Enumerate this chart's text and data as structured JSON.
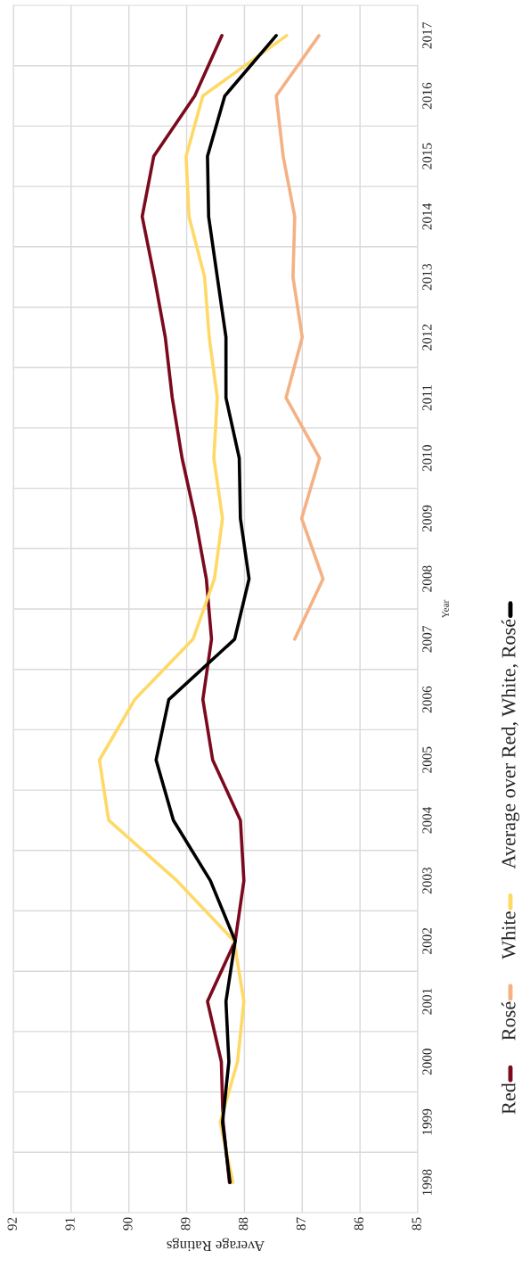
{
  "chart_data": {
    "type": "line",
    "orientation": "horizontal",
    "xlabel": "Average Ratings",
    "ylabel": "Year",
    "categories": [
      "2017",
      "2016",
      "2015",
      "2014",
      "2013",
      "2012",
      "2011",
      "2010",
      "2009",
      "2008",
      "2007",
      "2006",
      "2005",
      "2004",
      "2003",
      "2002",
      "2001",
      "2000",
      "1999",
      "1998"
    ],
    "xlim": [
      92,
      85
    ],
    "xticks": [
      92,
      91,
      90,
      89,
      88,
      87,
      86,
      85
    ],
    "grid": true,
    "legend": "right",
    "marker": "none",
    "line_style": "solid",
    "series": [
      {
        "name": "Red",
        "color": "#7b0a1e",
        "values": [
          88.39,
          88.86,
          89.57,
          89.77,
          89.56,
          89.37,
          89.25,
          89.08,
          88.85,
          88.66,
          88.57,
          88.72,
          88.55,
          88.07,
          88.01,
          88.16,
          88.64,
          88.4,
          88.37,
          88.26
        ]
      },
      {
        "name": "Rosé",
        "color": "#f4b183",
        "values": [
          86.71,
          87.45,
          87.33,
          87.13,
          87.16,
          87.0,
          87.28,
          86.7,
          87.01,
          86.64,
          87.13,
          null,
          null,
          null,
          null,
          null,
          null,
          null,
          null,
          null
        ]
      },
      {
        "name": "White",
        "color": "#ffd966",
        "values": [
          87.27,
          88.72,
          89.01,
          88.96,
          88.69,
          88.61,
          88.47,
          88.53,
          88.38,
          88.52,
          88.89,
          89.9,
          90.51,
          90.35,
          89.17,
          88.18,
          88.01,
          88.12,
          88.42,
          88.2
        ]
      },
      {
        "name": "Average over Red, White, Rosé",
        "color": "#000000",
        "values": [
          87.45,
          88.34,
          88.64,
          88.62,
          88.47,
          88.32,
          88.32,
          88.09,
          88.07,
          87.92,
          88.17,
          89.31,
          89.53,
          89.23,
          88.59,
          88.16,
          88.32,
          88.27,
          88.38,
          88.25
        ]
      }
    ]
  }
}
